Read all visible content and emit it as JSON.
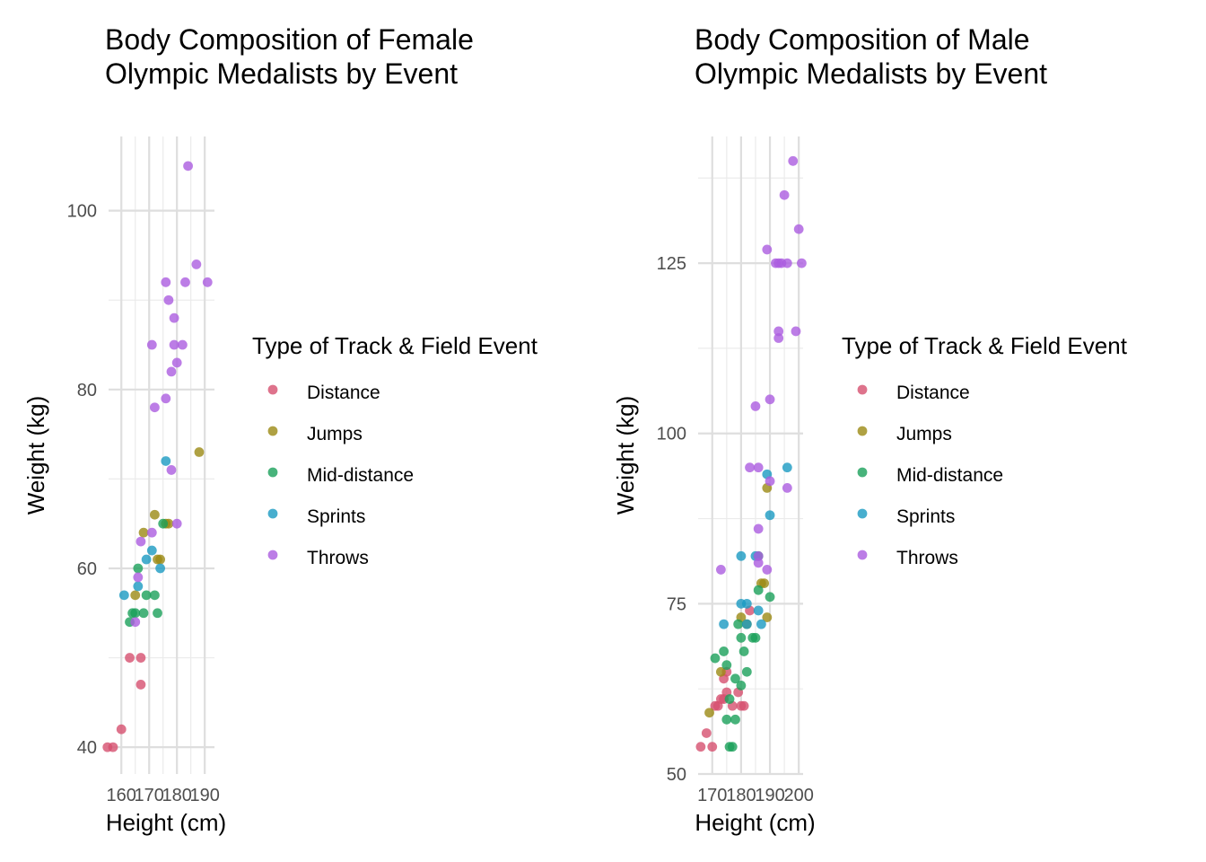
{
  "chart_data": [
    {
      "type": "scatter",
      "title": [
        "Body Composition of Female",
        "Olympic Medalists by Event"
      ],
      "xlabel": "Height (cm)",
      "ylabel": "Weight (kg)",
      "xticks": [
        160,
        170,
        180,
        190
      ],
      "xtick_labels": [
        "160",
        "170",
        "180",
        "190"
      ],
      "yticks": [
        40,
        60,
        80,
        100
      ],
      "ytick_labels": [
        "40",
        "60",
        "80",
        "100"
      ],
      "xlim": [
        155.4,
        193.5
      ],
      "ylim": [
        37.0,
        108.3
      ],
      "grid": true,
      "legend": {
        "title": "Type of Track & Field Event",
        "position": "right",
        "entries": [
          "Distance",
          "Jumps",
          "Mid-distance",
          "Sprints",
          "Throws"
        ]
      },
      "series": [
        {
          "name": "Distance",
          "color": "#d6506f",
          "points": [
            [
              155,
              40
            ],
            [
              157,
              40
            ],
            [
              160,
              42
            ],
            [
              163,
              50
            ],
            [
              167,
              50
            ],
            [
              167,
              47
            ]
          ]
        },
        {
          "name": "Jumps",
          "color": "#9b8a14",
          "points": [
            [
              165,
              57
            ],
            [
              168,
              64
            ],
            [
              172,
              66
            ],
            [
              173,
              61
            ],
            [
              174,
              61
            ],
            [
              176,
              65
            ],
            [
              177,
              65
            ],
            [
              188,
              73
            ]
          ]
        },
        {
          "name": "Mid-distance",
          "color": "#1aa05a",
          "points": [
            [
              163,
              54
            ],
            [
              164,
              55
            ],
            [
              165,
              55
            ],
            [
              166,
              60
            ],
            [
              168,
              55
            ],
            [
              169,
              57
            ],
            [
              172,
              57
            ],
            [
              173,
              55
            ],
            [
              175,
              65
            ]
          ]
        },
        {
          "name": "Sprints",
          "color": "#1a9ac2",
          "points": [
            [
              161,
              57
            ],
            [
              166,
              58
            ],
            [
              169,
              61
            ],
            [
              171,
              62
            ],
            [
              174,
              60
            ],
            [
              176,
              72
            ]
          ]
        },
        {
          "name": "Throws",
          "color": "#ab5ce0",
          "points": [
            [
              165,
              54
            ],
            [
              166,
              59
            ],
            [
              167,
              63
            ],
            [
              171,
              64
            ],
            [
              171,
              85
            ],
            [
              172,
              78
            ],
            [
              176,
              79
            ],
            [
              176,
              92
            ],
            [
              177,
              90
            ],
            [
              178,
              71
            ],
            [
              178,
              82
            ],
            [
              179,
              85
            ],
            [
              179,
              88
            ],
            [
              180,
              65
            ],
            [
              180,
              83
            ],
            [
              182,
              85
            ],
            [
              183,
              92
            ],
            [
              184,
              105
            ],
            [
              187,
              94
            ],
            [
              191,
              92
            ]
          ]
        }
      ]
    },
    {
      "type": "scatter",
      "title": [
        "Body Composition of Male",
        "Olympic Medalists by Event"
      ],
      "xlabel": "Height (cm)",
      "ylabel": "Weight (kg)",
      "xticks": [
        170,
        180,
        190,
        200
      ],
      "xtick_labels": [
        "170",
        "180",
        "190",
        "200"
      ],
      "yticks": [
        50,
        75,
        100,
        125
      ],
      "ytick_labels": [
        "50",
        "75",
        "100",
        "125"
      ],
      "xlim": [
        165.1,
        201.5
      ],
      "ylim": [
        50.0,
        143.6
      ],
      "grid": true,
      "legend": {
        "title": "Type of Track & Field Event",
        "position": "right",
        "entries": [
          "Distance",
          "Jumps",
          "Mid-distance",
          "Sprints",
          "Throws"
        ]
      },
      "series": [
        {
          "name": "Distance",
          "color": "#d6506f",
          "points": [
            [
              166,
              54
            ],
            [
              168,
              56
            ],
            [
              170,
              54
            ],
            [
              171,
              60
            ],
            [
              172,
              60
            ],
            [
              173,
              61
            ],
            [
              174,
              64
            ],
            [
              174,
              61
            ],
            [
              175,
              65
            ],
            [
              175,
              62
            ],
            [
              177,
              60
            ],
            [
              179,
              62
            ],
            [
              180,
              60
            ],
            [
              181,
              60
            ],
            [
              183,
              74
            ]
          ]
        },
        {
          "name": "Jumps",
          "color": "#9b8a14",
          "points": [
            [
              169,
              59
            ],
            [
              173,
              65
            ],
            [
              180,
              73
            ],
            [
              182,
              72
            ],
            [
              187,
              78
            ],
            [
              188,
              78
            ],
            [
              189,
              92
            ],
            [
              189,
              73
            ]
          ]
        },
        {
          "name": "Mid-distance",
          "color": "#1aa05a",
          "points": [
            [
              171,
              67
            ],
            [
              174,
              68
            ],
            [
              175,
              66
            ],
            [
              175,
              58
            ],
            [
              176,
              61
            ],
            [
              176,
              54
            ],
            [
              177,
              54
            ],
            [
              178,
              64
            ],
            [
              178,
              58
            ],
            [
              179,
              72
            ],
            [
              180,
              63
            ],
            [
              180,
              70
            ],
            [
              181,
              68
            ],
            [
              182,
              65
            ],
            [
              184,
              70
            ],
            [
              185,
              70
            ],
            [
              186,
              77
            ],
            [
              186,
              82
            ],
            [
              190,
              76
            ]
          ]
        },
        {
          "name": "Sprints",
          "color": "#1a9ac2",
          "points": [
            [
              174,
              72
            ],
            [
              180,
              75
            ],
            [
              180,
              82
            ],
            [
              182,
              75
            ],
            [
              182,
              72
            ],
            [
              185,
              82
            ],
            [
              186,
              74
            ],
            [
              187,
              72
            ],
            [
              189,
              94
            ],
            [
              190,
              88
            ],
            [
              196,
              95
            ]
          ]
        },
        {
          "name": "Throws",
          "color": "#ab5ce0",
          "points": [
            [
              173,
              80
            ],
            [
              183,
              95
            ],
            [
              185,
              104
            ],
            [
              186,
              82
            ],
            [
              186,
              95
            ],
            [
              186,
              86
            ],
            [
              186,
              81
            ],
            [
              189,
              80
            ],
            [
              189,
              127
            ],
            [
              190,
              105
            ],
            [
              190,
              93
            ],
            [
              192,
              125
            ],
            [
              193,
              125
            ],
            [
              193,
              115
            ],
            [
              193,
              114
            ],
            [
              194,
              125
            ],
            [
              195,
              135
            ],
            [
              196,
              92
            ],
            [
              196,
              125
            ],
            [
              198,
              140
            ],
            [
              199,
              115
            ],
            [
              200,
              130
            ],
            [
              201,
              125
            ]
          ]
        }
      ]
    }
  ]
}
